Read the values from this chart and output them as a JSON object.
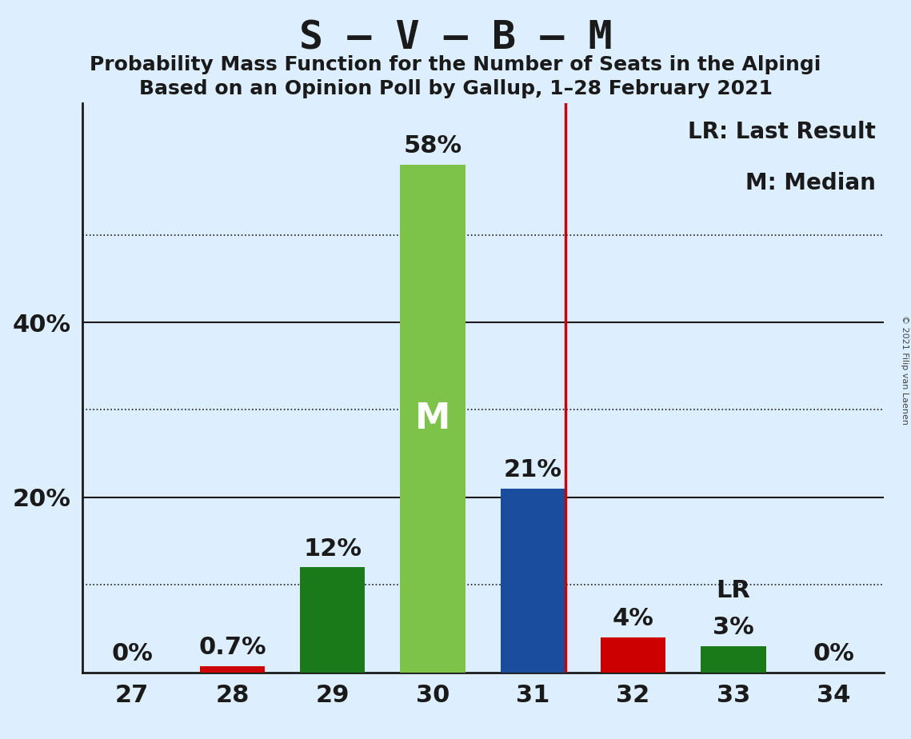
{
  "title": "S – V – B – M",
  "subtitle1": "Probability Mass Function for the Number of Seats in the Alpingi",
  "subtitle2": "Based on an Opinion Poll by Gallup, 1–28 February 2021",
  "copyright": "© 2021 Filip van Laenen",
  "categories": [
    27,
    28,
    29,
    30,
    31,
    32,
    33,
    34
  ],
  "values": [
    0.0,
    0.7,
    12.0,
    58.0,
    21.0,
    4.0,
    3.0,
    0.0
  ],
  "bar_colors": [
    "#1a7a1a",
    "#cc0000",
    "#1a7a1a",
    "#7dc34a",
    "#1a4d9e",
    "#cc0000",
    "#1a7a1a",
    "#1a7a1a"
  ],
  "labels": [
    "0%",
    "0.7%",
    "12%",
    "58%",
    "21%",
    "4%",
    "3%",
    "0%"
  ],
  "median_bar_index": 3,
  "median_label": "M",
  "lr_line_after_index": 4,
  "lr_bar_index": 6,
  "lr_label": "LR",
  "legend_text1": "LR: Last Result",
  "legend_text2": "M: Median",
  "background_color": "#ddeeff",
  "ylim": [
    0,
    65
  ],
  "solid_gridlines": [
    20,
    40
  ],
  "dotted_gridlines": [
    10,
    30,
    50
  ],
  "ytick_positions": [
    20,
    40
  ],
  "ytick_labels": [
    "20%",
    "40%"
  ],
  "grid_color": "#1a1a1a",
  "lr_line_color": "#cc0000",
  "title_fontsize": 36,
  "subtitle_fontsize": 18,
  "bar_label_fontsize": 22,
  "ytick_fontsize": 22,
  "xtick_fontsize": 22,
  "legend_fontsize": 20,
  "median_fontsize": 32,
  "lr_fontsize": 22
}
